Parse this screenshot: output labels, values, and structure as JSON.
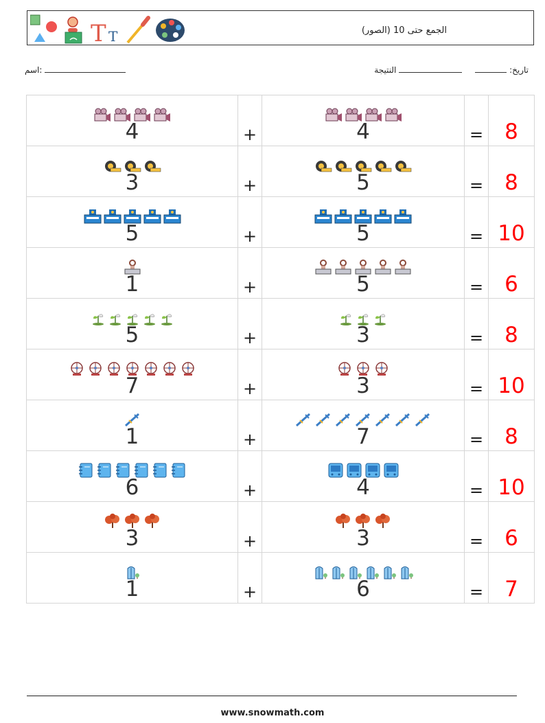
{
  "header": {
    "title": "الجمع حتى 10 (الصور)",
    "logo_icons": [
      "shapes-icon",
      "teacher-icon",
      "text-tool-icon",
      "eyedropper-icon",
      "palette-icon"
    ]
  },
  "meta": {
    "date_label": "تاريخ:",
    "result_label": "النتيجة",
    "name_label": "اسم:"
  },
  "operators": {
    "plus": "+",
    "equals": "="
  },
  "rows": [
    {
      "a": 4,
      "a_text": "4",
      "b": 4,
      "b_text": "4",
      "sum_text": "8",
      "a_icon": "camera-icon",
      "b_icon": "camera-icon"
    },
    {
      "a": 3,
      "a_text": "3",
      "b": 5,
      "b_text": "5",
      "sum_text": "8",
      "a_icon": "tape-measure-icon",
      "b_icon": "tape-measure-icon"
    },
    {
      "a": 5,
      "a_text": "5",
      "b": 5,
      "b_text": "5",
      "sum_text": "10",
      "a_icon": "building-icon",
      "b_icon": "building-icon"
    },
    {
      "a": 1,
      "a_text": "1",
      "b": 5,
      "b_text": "5",
      "sum_text": "6",
      "a_icon": "stamp-icon",
      "b_icon": "stamp-icon"
    },
    {
      "a": 5,
      "a_text": "5",
      "b": 3,
      "b_text": "3",
      "sum_text": "8",
      "a_icon": "plant-sprout-icon",
      "b_icon": "plant-sprout-icon"
    },
    {
      "a": 7,
      "a_text": "7",
      "b": 3,
      "b_text": "3",
      "sum_text": "10",
      "a_icon": "ferris-wheel-icon",
      "b_icon": "ferris-wheel-icon"
    },
    {
      "a": 1,
      "a_text": "1",
      "b": 7,
      "b_text": "7",
      "sum_text": "8",
      "a_icon": "syringe-icon",
      "b_icon": "syringe-icon"
    },
    {
      "a": 6,
      "a_text": "6",
      "b": 4,
      "b_text": "4",
      "sum_text": "10",
      "a_icon": "notebook-icon",
      "b_icon": "bus-icon"
    },
    {
      "a": 3,
      "a_text": "3",
      "b": 3,
      "b_text": "3",
      "sum_text": "6",
      "a_icon": "tree-icon",
      "b_icon": "tree-icon"
    },
    {
      "a": 1,
      "a_text": "1",
      "b": 6,
      "b_text": "6",
      "sum_text": "7",
      "a_icon": "skyscraper-icon",
      "b_icon": "skyscraper-icon"
    }
  ],
  "footer": {
    "url": "www.snowmath.com"
  },
  "colors": {
    "answer": "#ff0000",
    "border": "#d6d6d6"
  }
}
